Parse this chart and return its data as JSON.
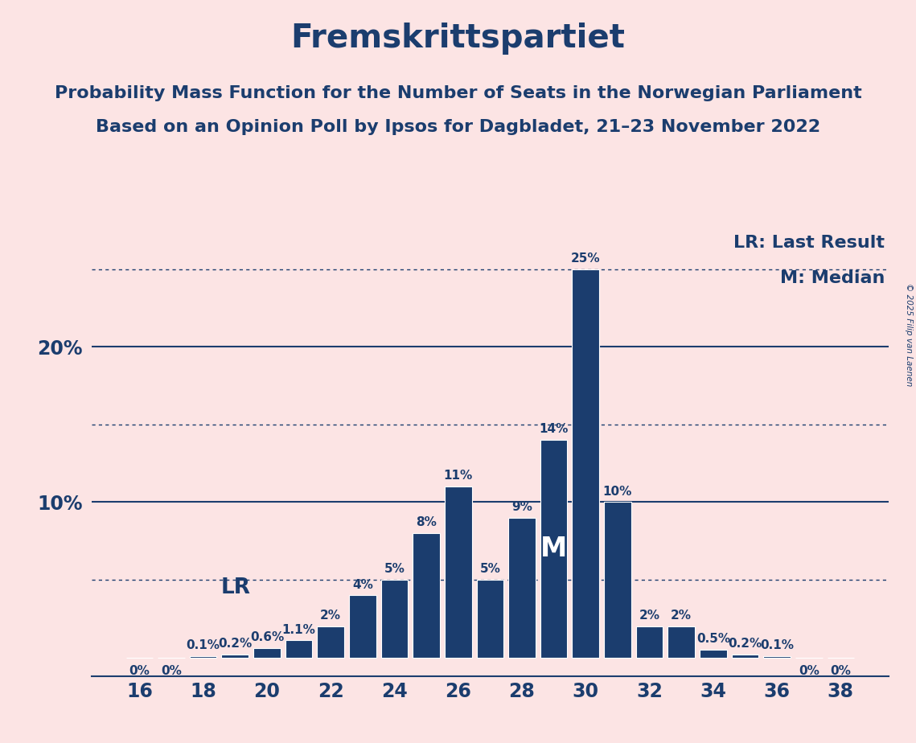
{
  "title": "Fremskrittspartiet",
  "subtitle1": "Probability Mass Function for the Number of Seats in the Norwegian Parliament",
  "subtitle2": "Based on an Opinion Poll by Ipsos for Dagbladet, 21–23 November 2022",
  "copyright": "© 2025 Filip van Laenen",
  "seats": [
    16,
    17,
    18,
    19,
    20,
    21,
    22,
    23,
    24,
    25,
    26,
    27,
    28,
    29,
    30,
    31,
    32,
    33,
    34,
    35,
    36,
    37,
    38
  ],
  "probabilities": [
    0.0,
    0.0,
    0.1,
    0.2,
    0.6,
    1.1,
    2.0,
    4.0,
    5.0,
    8.0,
    11.0,
    5.0,
    9.0,
    14.0,
    25.0,
    10.0,
    2.0,
    2.0,
    0.5,
    0.2,
    0.1,
    0.0,
    0.0
  ],
  "labels": [
    "0%",
    "0%",
    "0.1%",
    "0.2%",
    "0.6%",
    "1.1%",
    "2%",
    "4%",
    "5%",
    "8%",
    "11%",
    "5%",
    "9%",
    "14%",
    "25%",
    "10%",
    "2%",
    "2%",
    "0.5%",
    "0.2%",
    "0.1%",
    "0%",
    "0%"
  ],
  "bar_color": "#1b3d6e",
  "background_color": "#fce4e4",
  "text_color": "#1b3d6e",
  "last_result_seat": 21,
  "median_seat": 29,
  "lr_label": "LR: Last Result",
  "median_label": "M: Median",
  "median_marker": "M",
  "solid_ylines": [
    10.0,
    20.0
  ],
  "dotted_ylines": [
    5.0,
    15.0,
    25.0
  ],
  "ylim_max": 27.5,
  "bar_width": 0.85
}
